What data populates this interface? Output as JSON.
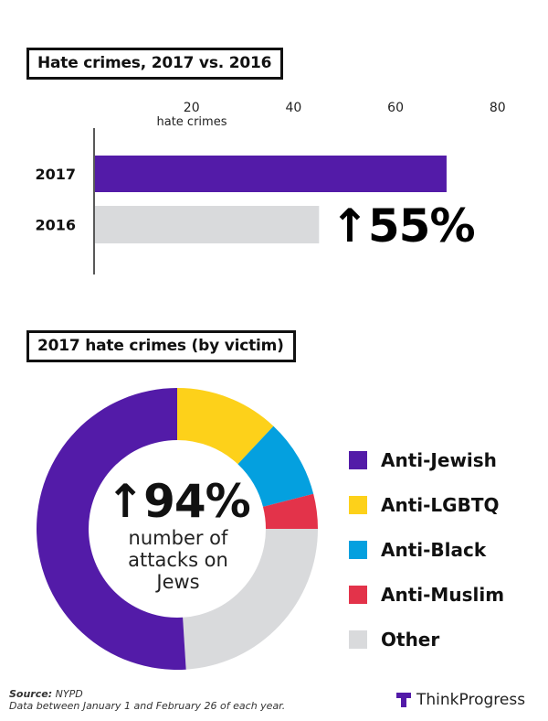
{
  "colors": {
    "purple": "#531ba8",
    "yellow": "#fdd11a",
    "blue": "#04a0df",
    "red": "#e3334a",
    "gray": "#d9dadc",
    "axis": "#222222"
  },
  "chart_data": [
    {
      "type": "bar",
      "orientation": "horizontal",
      "title": "Hate crimes, 2017 vs. 2016",
      "xlabel": "hate crimes",
      "xticks": [
        20,
        40,
        60,
        80
      ],
      "xlim": [
        0,
        80
      ],
      "categories": [
        "2017",
        "2016"
      ],
      "values": [
        70,
        45
      ],
      "bar_colors": [
        "#531ba8",
        "#d9dadc"
      ],
      "annotation": "↑55%"
    },
    {
      "type": "pie",
      "donut": true,
      "title": "2017 hate crimes (by victim)",
      "labels": [
        "Anti-Jewish",
        "Anti-LGBTQ",
        "Anti-Black",
        "Anti-Muslim",
        "Other"
      ],
      "values": [
        51,
        12,
        9,
        4,
        24
      ],
      "slice_order_clockwise_from_top": [
        "Anti-LGBTQ",
        "Anti-Black",
        "Anti-Muslim",
        "Other",
        "Anti-Jewish"
      ],
      "colors": [
        "#531ba8",
        "#fdd11a",
        "#04a0df",
        "#e3334a",
        "#d9dadc"
      ],
      "legend": "right",
      "center_value": "↑94%",
      "center_text": [
        "number of",
        "attacks on",
        "Jews"
      ]
    }
  ],
  "footer": {
    "source_label": "Source:",
    "source": "NYPD",
    "note": "Data between January 1 and February 26 of each year.",
    "brand": "ThinkProgress"
  }
}
